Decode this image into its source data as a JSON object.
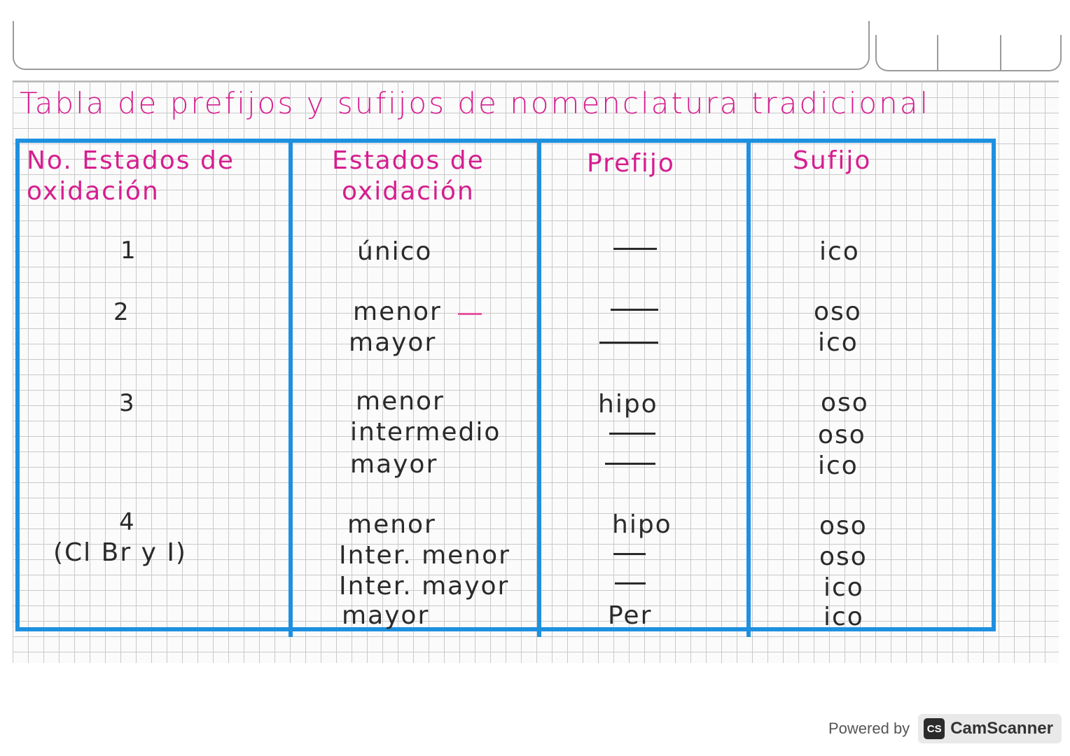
{
  "title": "Tabla de prefijos y sufijos de nomenclatura tradicional",
  "headers": {
    "col1_line1": "No. Estados de",
    "col1_line2": "oxidación",
    "col2_line1": "Estados de",
    "col2_line2": "oxidación",
    "col3": "Prefijo",
    "col4": "Sufijo"
  },
  "rows": {
    "r1": {
      "num": "1",
      "states": [
        "único"
      ],
      "prefix": [
        "—"
      ],
      "suffix": [
        "ico"
      ]
    },
    "r2": {
      "num": "2",
      "states": [
        "menor",
        "mayor"
      ],
      "prefix": [
        "—",
        "—"
      ],
      "suffix": [
        "oso",
        "ico"
      ]
    },
    "r3": {
      "num": "3",
      "states": [
        "menor",
        "intermedio",
        "mayor"
      ],
      "prefix": [
        "hipo",
        "—",
        "—"
      ],
      "suffix": [
        "oso",
        "oso",
        "ico"
      ]
    },
    "r4": {
      "num": "4",
      "note": "(Cl Br y I)",
      "states": [
        "menor",
        "Inter. menor",
        "Inter. mayor",
        "mayor"
      ],
      "prefix": [
        "hipo",
        "—",
        "—",
        "Per"
      ],
      "suffix": [
        "oso",
        "oso",
        "ico",
        "ico"
      ]
    }
  },
  "footer": {
    "powered_by": "Powered by",
    "logo_text": "CS",
    "brand": "CamScanner"
  },
  "colors": {
    "ink_pink": "#d61e8f",
    "ink_blue": "#1e90e0",
    "ink_dark": "#2a2a2a"
  }
}
